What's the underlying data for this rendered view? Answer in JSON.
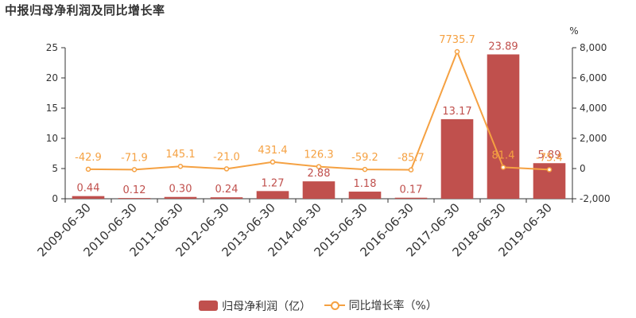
{
  "title": "中报归母净利润及同比增长率",
  "colors": {
    "bar": "#c0504d",
    "line": "#f5a142",
    "axis": "#333333"
  },
  "chart_data": {
    "type": "bar",
    "categories": [
      "2009-06-30",
      "2010-06-30",
      "2011-06-30",
      "2012-06-30",
      "2013-06-30",
      "2014-06-30",
      "2015-06-30",
      "2016-06-30",
      "2017-06-30",
      "2018-06-30",
      "2019-06-30"
    ],
    "series": [
      {
        "name": "归母净利润（亿）",
        "type": "bar",
        "axis": "left",
        "values": [
          0.44,
          0.12,
          0.3,
          0.24,
          1.27,
          2.88,
          1.18,
          0.17,
          13.17,
          23.89,
          5.89
        ],
        "labels": [
          "0.44",
          "0.12",
          "0.30",
          "0.24",
          "1.27",
          "2.88",
          "1.18",
          "0.17",
          "13.17",
          "23.89",
          "5.89"
        ]
      },
      {
        "name": "同比增长率（%）",
        "type": "line",
        "axis": "right",
        "values": [
          -42.9,
          -71.9,
          145.1,
          -21.0,
          431.4,
          126.3,
          -59.2,
          -85.7,
          7735.7,
          81.4,
          -75.4
        ],
        "labels": [
          "-42.9",
          "-71.9",
          "145.1",
          "-21.0",
          "431.4",
          "126.3",
          "-59.2",
          "-85.7",
          "7735.7",
          "81.4",
          "-75.4"
        ]
      }
    ],
    "y_left": {
      "ylim": [
        0,
        25
      ],
      "ticks": [
        "0",
        "5",
        "10",
        "15",
        "20",
        "25"
      ]
    },
    "y_right": {
      "ylim": [
        -2000,
        8000
      ],
      "unit": "%",
      "ticks": [
        "-2,000",
        "0",
        "2,000",
        "4,000",
        "6,000",
        "8,000"
      ]
    },
    "grid": false,
    "legend_position": "bottom"
  }
}
